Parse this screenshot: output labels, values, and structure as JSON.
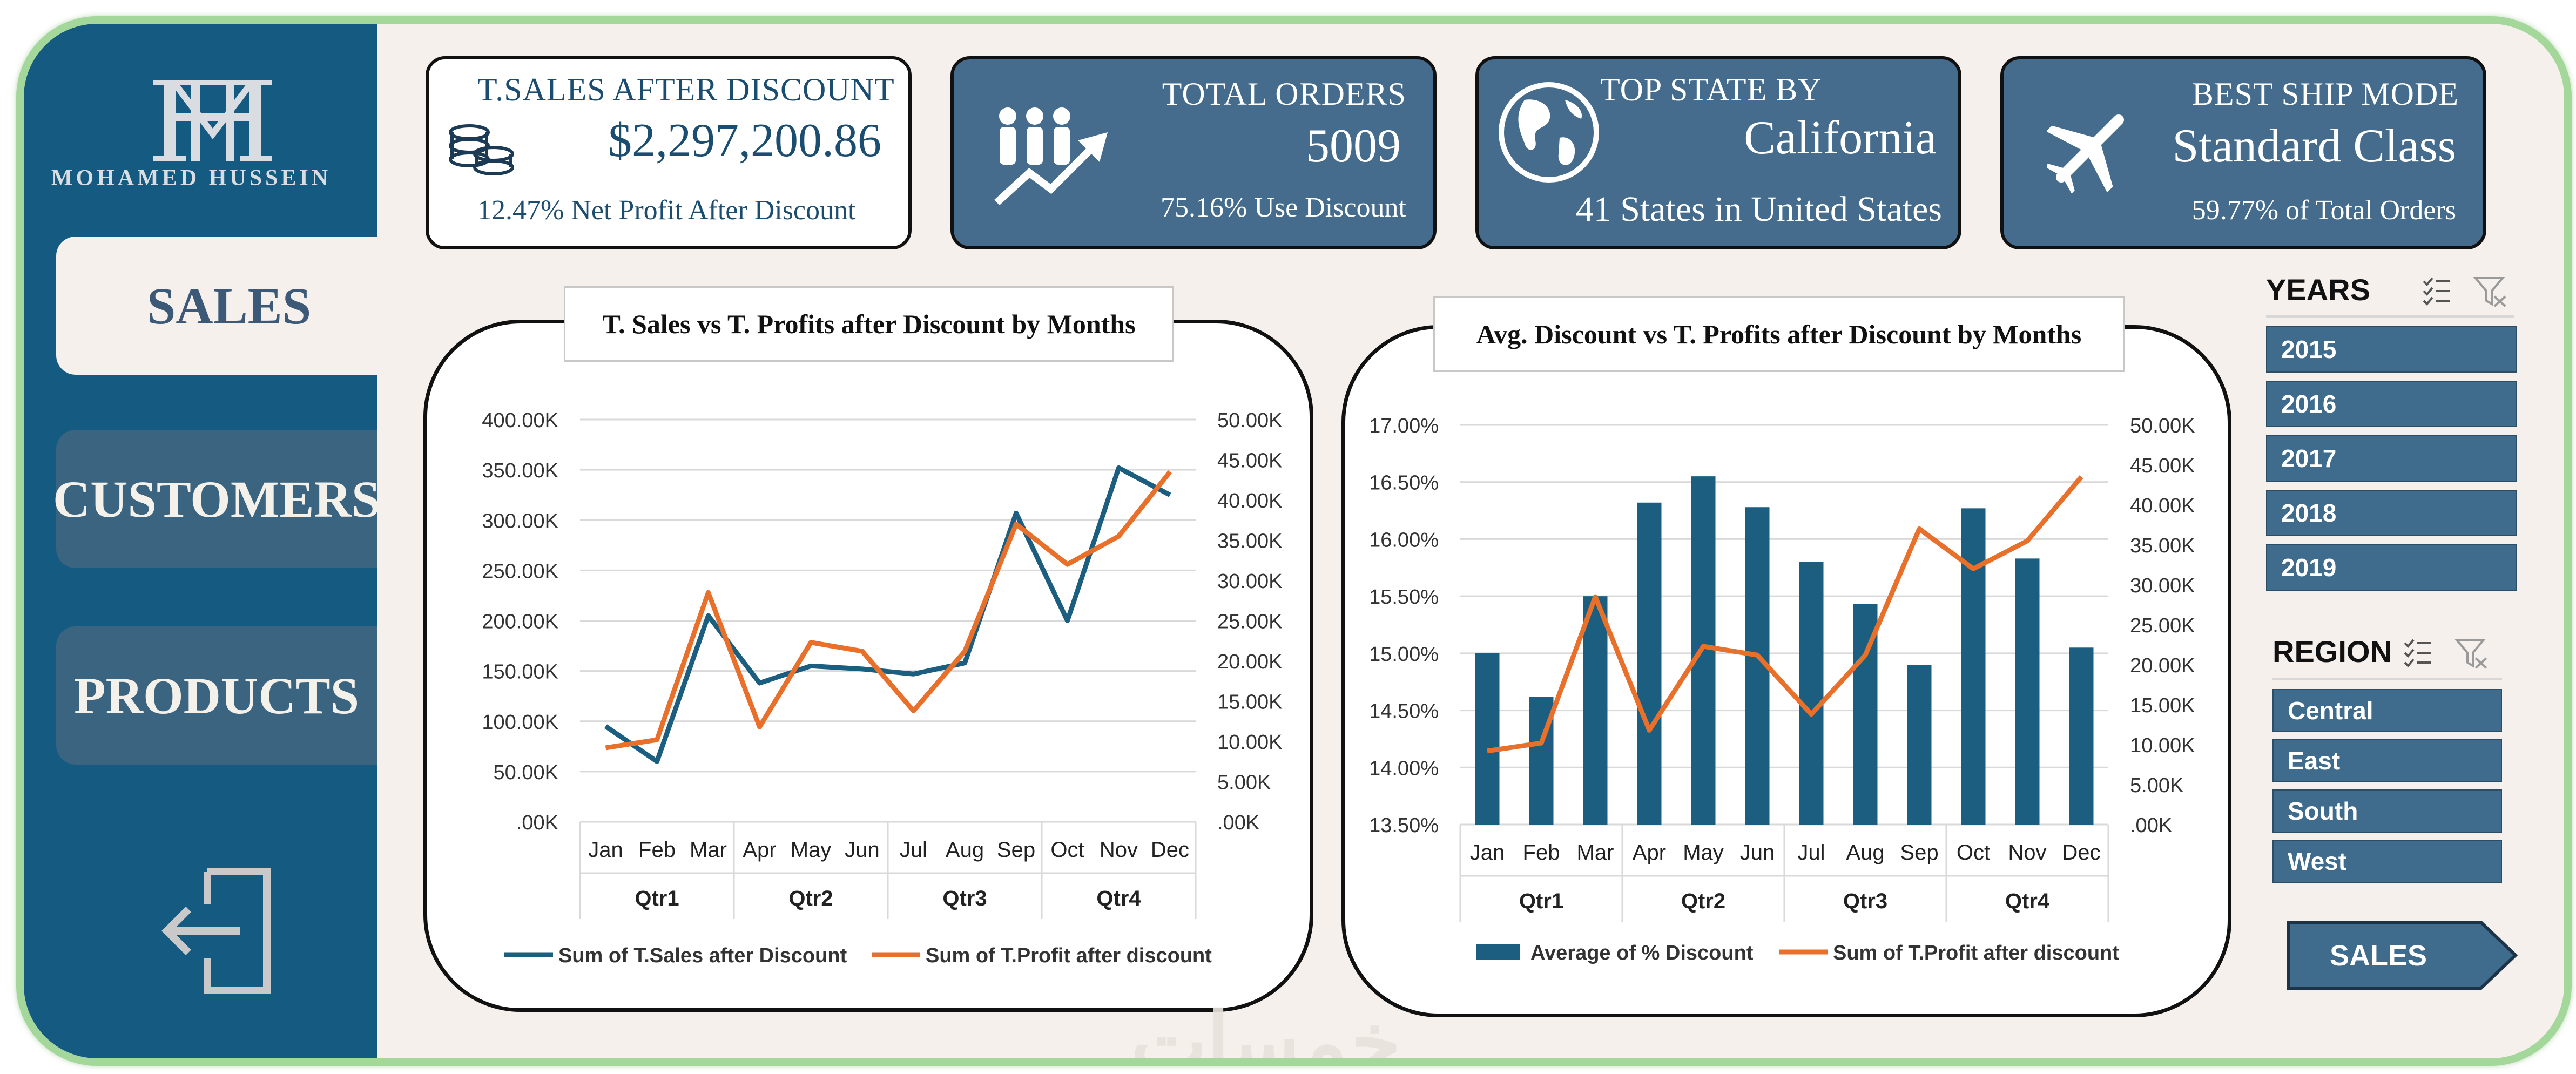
{
  "sidebar": {
    "logo_text": "MOHAMED HUSSEIN",
    "nav": [
      {
        "label": "SALES"
      },
      {
        "label": "CUSTOMERS"
      },
      {
        "label": "PRODUCTS"
      }
    ]
  },
  "kpis": {
    "sales": {
      "title": "T.SALES AFTER DISCOUNT",
      "value": "$2,297,200.86",
      "note": "12.47% Net Profit After Discount"
    },
    "orders": {
      "title": "TOTAL ORDERS",
      "value": "5009",
      "note": "75.16% Use Discount"
    },
    "state": {
      "title": "TOP STATE BY",
      "value": "California",
      "note": "41 States in United States"
    },
    "ship": {
      "title": "BEST SHIP MODE",
      "value": "Standard Class",
      "note": "59.77% of Total Orders"
    }
  },
  "chart_data": [
    {
      "type": "line",
      "title": "T. Sales vs T. Profits after Discount by Months",
      "categories": [
        "Jan",
        "Feb",
        "Mar",
        "Apr",
        "May",
        "Jun",
        "Jul",
        "Aug",
        "Sep",
        "Oct",
        "Nov",
        "Dec"
      ],
      "groups": [
        "Qtr1",
        "Qtr2",
        "Qtr3",
        "Qtr4"
      ],
      "y_ticks": [
        "400.00K",
        "350.00K",
        "300.00K",
        "250.00K",
        "200.00K",
        "150.00K",
        "100.00K",
        "50.00K",
        ".00K"
      ],
      "y2_ticks": [
        "50.00K",
        "45.00K",
        "40.00K",
        "35.00K",
        "30.00K",
        "25.00K",
        "20.00K",
        "15.00K",
        "10.00K",
        "5.00K",
        ".00K"
      ],
      "ylim": [
        0,
        400000
      ],
      "y2lim": [
        0,
        50000
      ],
      "series": [
        {
          "name": "Sum of T.Sales after Discount",
          "axis": "left",
          "color": "#1b5e80",
          "values": [
            95000,
            60000,
            205000,
            138000,
            155000,
            152000,
            147000,
            158000,
            307000,
            200000,
            352000,
            325000
          ]
        },
        {
          "name": "Sum of T.Profit after discount",
          "axis": "right",
          "color": "#e8702a",
          "values": [
            9200,
            10200,
            28500,
            11800,
            22300,
            21200,
            13800,
            21200,
            37000,
            32000,
            35500,
            43500
          ]
        }
      ]
    },
    {
      "type": "bar+line",
      "title": "Avg. Discount vs T. Profits after Discount by Months",
      "categories": [
        "Jan",
        "Feb",
        "Mar",
        "Apr",
        "May",
        "Jun",
        "Jul",
        "Aug",
        "Sep",
        "Oct",
        "Nov",
        "Dec"
      ],
      "groups": [
        "Qtr1",
        "Qtr2",
        "Qtr3",
        "Qtr4"
      ],
      "y_ticks": [
        "17.00%",
        "16.50%",
        "16.00%",
        "15.50%",
        "15.00%",
        "14.50%",
        "14.00%",
        "13.50%"
      ],
      "y2_ticks": [
        "50.00K",
        "45.00K",
        "40.00K",
        "35.00K",
        "30.00K",
        "25.00K",
        "20.00K",
        "15.00K",
        "10.00K",
        "5.00K",
        ".00K"
      ],
      "ylim": [
        13.5,
        17.0
      ],
      "y2lim": [
        0,
        50000
      ],
      "series": [
        {
          "name": "Average of % Discount",
          "axis": "left",
          "color": "#1b5e80",
          "kind": "bar",
          "values": [
            15.0,
            14.62,
            15.5,
            16.32,
            16.55,
            16.28,
            15.8,
            15.43,
            14.9,
            16.27,
            15.83,
            15.05
          ]
        },
        {
          "name": "Sum of T.Profit after discount",
          "axis": "right",
          "color": "#e8702a",
          "kind": "line",
          "values": [
            9200,
            10200,
            28500,
            11800,
            22300,
            21200,
            13800,
            21200,
            37000,
            32000,
            35500,
            43500
          ]
        }
      ]
    }
  ],
  "slicers": {
    "years": {
      "title": "YEARS",
      "items": [
        "2015",
        "2016",
        "2017",
        "2018",
        "2019"
      ]
    },
    "region": {
      "title": "REGION",
      "items": [
        "Central",
        "East",
        "South",
        "West"
      ]
    }
  },
  "sales_button": "SALES",
  "watermark": "خمسات"
}
